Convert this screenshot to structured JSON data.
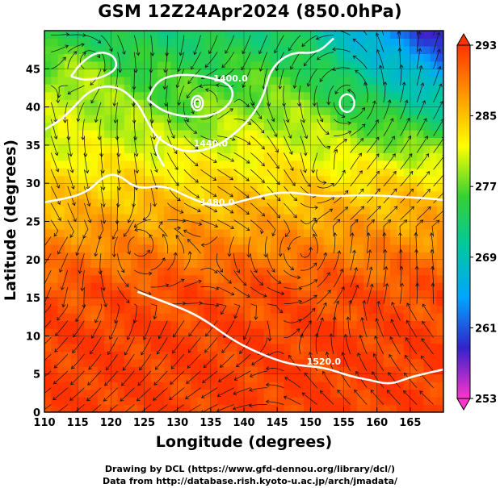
{
  "title": "GSM 12Z24Apr2024 (850.0hPa)",
  "xlabel": "Longitude (degrees)",
  "ylabel": "Latitude  (degrees)",
  "credits": {
    "line1": "Drawing by DCL (https://www.gfd-dennou.org/library/dcl/)",
    "line2": "Data from http://database.rish.kyoto-u.ac.jp/arch/jmadata/"
  },
  "chart_data": {
    "type": "heatmap",
    "title": "GSM 12Z24Apr2024 (850.0hPa)",
    "xlabel": "Longitude (degrees)",
    "ylabel": "Latitude  (degrees)",
    "xlim": [
      110,
      170
    ],
    "ylim": [
      0,
      50
    ],
    "x_ticks": [
      110,
      115,
      120,
      125,
      130,
      135,
      140,
      145,
      150,
      155,
      160,
      165
    ],
    "y_ticks": [
      0,
      5,
      10,
      15,
      20,
      25,
      30,
      35,
      40,
      45
    ],
    "grid": true,
    "colorbar": {
      "min": 253,
      "max": 293,
      "tick_labels": [
        253,
        261,
        269,
        277,
        285,
        293
      ],
      "colors": [
        "#ff33cc",
        "#3322cc",
        "#00a6ff",
        "#00c8a0",
        "#33d233",
        "#ffff00",
        "#ff9900",
        "#ff3300"
      ]
    },
    "contour_labels": [
      "1400.0",
      "1440.0",
      "1480.0",
      "1520.0"
    ],
    "contours": [
      {
        "label": "1400.0",
        "points": [
          [
            125.5,
            41
          ],
          [
            128,
            39.3
          ],
          [
            132,
            38.6
          ],
          [
            136,
            39
          ],
          [
            138.5,
            41
          ],
          [
            138,
            43
          ],
          [
            134.5,
            44
          ],
          [
            130,
            44.3
          ],
          [
            127,
            43.5
          ],
          [
            125.5,
            41
          ]
        ]
      },
      {
        "label": "1440.0",
        "points": [
          [
            110,
            37
          ],
          [
            113,
            38.6
          ],
          [
            117,
            42.5
          ],
          [
            121,
            42.8
          ],
          [
            124,
            40.6
          ],
          [
            125.5,
            38
          ],
          [
            127,
            35.8
          ],
          [
            131,
            34
          ],
          [
            135,
            34.5
          ],
          [
            138,
            36
          ],
          [
            141,
            38.5
          ],
          [
            143,
            41.5
          ],
          [
            144,
            45
          ],
          [
            147,
            47.2
          ],
          [
            151,
            47
          ],
          [
            153.5,
            49
          ]
        ]
      },
      {
        "label": "1480.0",
        "points": [
          [
            110,
            27.5
          ],
          [
            116,
            28.5
          ],
          [
            119,
            31
          ],
          [
            121,
            31.2
          ],
          [
            124,
            29.2
          ],
          [
            128,
            29.8
          ],
          [
            132,
            28
          ],
          [
            136,
            26.8
          ],
          [
            141,
            28
          ],
          [
            146,
            29
          ],
          [
            152,
            28.2
          ],
          [
            158,
            28.5
          ],
          [
            164,
            28.2
          ],
          [
            168,
            28
          ],
          [
            170,
            27.8
          ]
        ]
      },
      {
        "label": "1520.0",
        "points": [
          [
            124,
            15.8
          ],
          [
            127,
            14.8
          ],
          [
            133,
            12.8
          ],
          [
            138,
            9.6
          ],
          [
            142,
            7.8
          ],
          [
            147,
            6.2
          ],
          [
            152,
            5.9
          ],
          [
            156,
            4.7
          ],
          [
            159,
            4.2
          ],
          [
            162,
            3.6
          ],
          [
            165,
            4.6
          ],
          [
            168,
            5.2
          ],
          [
            170,
            5.6
          ]
        ]
      },
      {
        "label": "",
        "points": [
          [
            114,
            44
          ],
          [
            115.5,
            45.8
          ],
          [
            118,
            47.3
          ],
          [
            120.5,
            46.8
          ],
          [
            121,
            45
          ],
          [
            118.5,
            43.8
          ],
          [
            116,
            43.5
          ],
          [
            114,
            44
          ]
        ]
      },
      {
        "label": "",
        "points": [
          [
            128,
            32.2
          ],
          [
            126.5,
            34.5
          ],
          [
            127.5,
            36.2
          ]
        ]
      }
    ]
  }
}
